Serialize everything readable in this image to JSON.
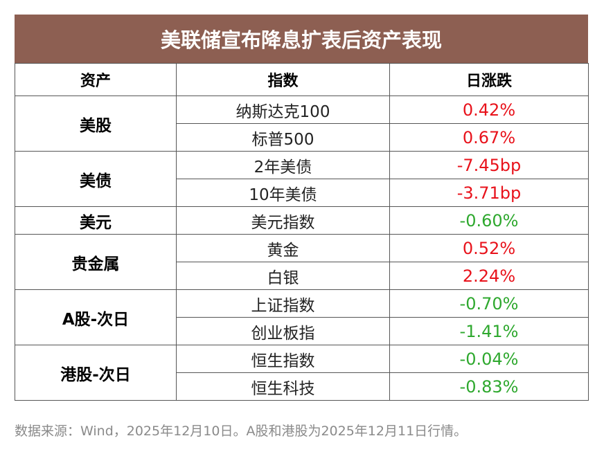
{
  "title": "美联储宣布降息扩表后资产表现",
  "headers": {
    "asset": "资产",
    "index": "指数",
    "change": "日涨跌"
  },
  "groups": [
    {
      "asset": "美股",
      "rows": [
        {
          "index": "纳斯达克100",
          "change": "0.42%",
          "direction": "up"
        },
        {
          "index": "标普500",
          "change": "0.67%",
          "direction": "up"
        }
      ]
    },
    {
      "asset": "美债",
      "rows": [
        {
          "index": "2年美债",
          "change": "-7.45bp",
          "direction": "up"
        },
        {
          "index": "10年美债",
          "change": "-3.71bp",
          "direction": "up"
        }
      ]
    },
    {
      "asset": "美元",
      "rows": [
        {
          "index": "美元指数",
          "change": "-0.60%",
          "direction": "down"
        }
      ]
    },
    {
      "asset": "贵金属",
      "rows": [
        {
          "index": "黄金",
          "change": "0.52%",
          "direction": "up"
        },
        {
          "index": "白银",
          "change": "2.24%",
          "direction": "up"
        }
      ]
    },
    {
      "asset": "A股-次日",
      "rows": [
        {
          "index": "上证指数",
          "change": "-0.70%",
          "direction": "down"
        },
        {
          "index": "创业板指",
          "change": "-1.41%",
          "direction": "down"
        }
      ]
    },
    {
      "asset": "港股-次日",
      "rows": [
        {
          "index": "恒生指数",
          "change": "-0.04%",
          "direction": "down"
        },
        {
          "index": "恒生科技",
          "change": "-0.83%",
          "direction": "down"
        }
      ]
    }
  ],
  "colors": {
    "title_bg": "#8d5f52",
    "up": "#e8121b",
    "down": "#2ea82e"
  },
  "footnote": "数据来源：Wind，2025年12月10日。A股和港股为2025年12月11日行情。"
}
